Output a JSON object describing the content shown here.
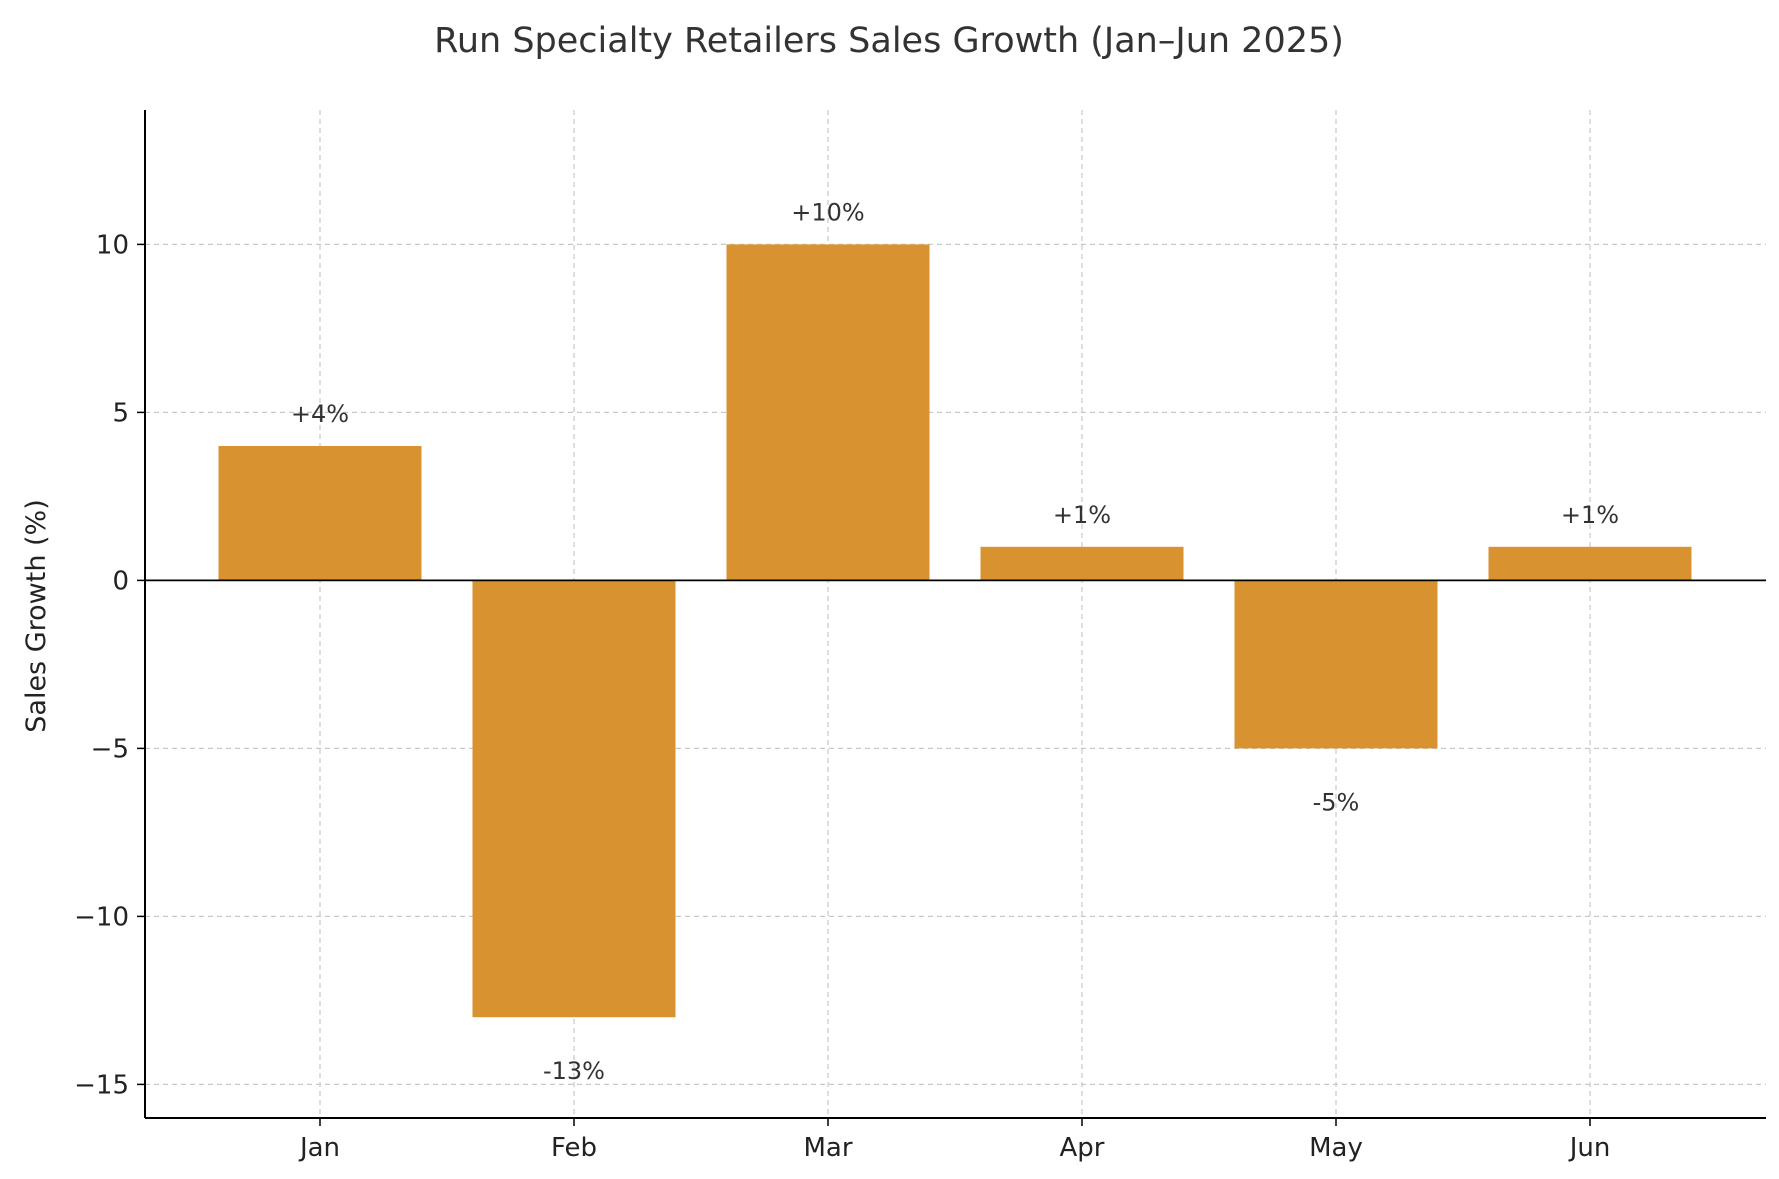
{
  "chart_data": {
    "type": "bar",
    "title": "Run Specialty Retailers Sales Growth (Jan–Jun 2025)",
    "xlabel": "",
    "ylabel": "Sales Growth (%)",
    "categories": [
      "Jan",
      "Feb",
      "Mar",
      "Apr",
      "May",
      "Jun"
    ],
    "values": [
      4,
      -13,
      10,
      1,
      -5,
      1
    ],
    "data_labels": [
      "+4%",
      "-13%",
      "+10%",
      "+1%",
      "-5%",
      "+1%"
    ],
    "ylim": [
      -16,
      14
    ],
    "yticks": [
      10,
      5,
      0,
      -5,
      -10,
      -15
    ],
    "ytick_labels": [
      "10",
      "5",
      "0",
      "−5",
      "−10",
      "−15"
    ],
    "grid": true,
    "bar_color": "#d89230",
    "axis_color": "#000000"
  }
}
